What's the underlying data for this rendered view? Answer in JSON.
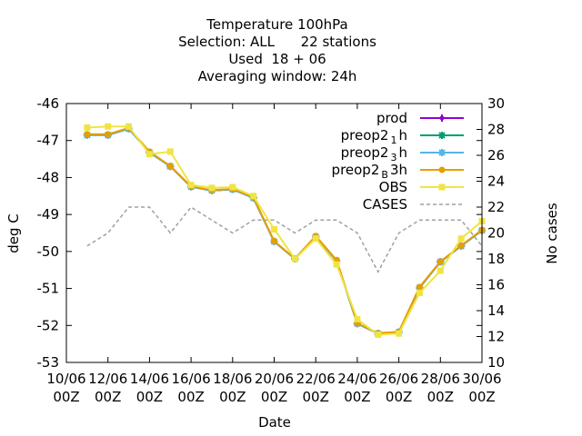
{
  "chart_data": {
    "type": "line",
    "title_lines": [
      "Temperature 100hPa",
      "Selection: ALL      22 stations",
      "Used  18 + 06",
      "Averaging window: 24h"
    ],
    "xlabel": "Date",
    "ylabel": "deg C",
    "y2label": "No cases",
    "ylim": [
      -53,
      -46
    ],
    "y2lim": [
      10,
      30
    ],
    "yticks": [
      "-53",
      "-52",
      "-51",
      "-50",
      "-49",
      "-48",
      "-47",
      "-46"
    ],
    "y2ticks": [
      "10",
      "12",
      "14",
      "16",
      "18",
      "20",
      "22",
      "24",
      "26",
      "28",
      "30"
    ],
    "xlim": [
      "2024-06-10T00",
      "2024-06-30T00"
    ],
    "xticks": [
      {
        "line1": "10/06",
        "line2": "00Z"
      },
      {
        "line1": "12/06",
        "line2": "00Z"
      },
      {
        "line1": "14/06",
        "line2": "00Z"
      },
      {
        "line1": "16/06",
        "line2": "00Z"
      },
      {
        "line1": "18/06",
        "line2": "00Z"
      },
      {
        "line1": "20/06",
        "line2": "00Z"
      },
      {
        "line1": "22/06",
        "line2": "00Z"
      },
      {
        "line1": "24/06",
        "line2": "00Z"
      },
      {
        "line1": "26/06",
        "line2": "00Z"
      },
      {
        "line1": "28/06",
        "line2": "00Z"
      },
      {
        "line1": "30/06",
        "line2": "00Z"
      }
    ],
    "x": [
      "2024-06-11T00",
      "2024-06-12T00",
      "2024-06-13T00",
      "2024-06-14T00",
      "2024-06-15T00",
      "2024-06-16T00",
      "2024-06-17T00",
      "2024-06-18T00",
      "2024-06-19T00",
      "2024-06-20T00",
      "2024-06-21T00",
      "2024-06-22T00",
      "2024-06-23T00",
      "2024-06-24T00",
      "2024-06-25T00",
      "2024-06-26T00",
      "2024-06-27T00",
      "2024-06-28T00",
      "2024-06-29T00",
      "2024-06-30T00"
    ],
    "legend": [
      {
        "key": "prod",
        "label": "prod",
        "sub": "",
        "after": "",
        "color": "#9400d3",
        "marker": "plus"
      },
      {
        "key": "p1",
        "label": "preop2",
        "sub": "1",
        "after": "h",
        "color": "#009e73",
        "marker": "star"
      },
      {
        "key": "p3",
        "label": "preop2",
        "sub": "3",
        "after": "h",
        "color": "#56b4e9",
        "marker": "star"
      },
      {
        "key": "pB",
        "label": "preop2",
        "sub": "B",
        "after": "3h",
        "color": "#e69f00",
        "marker": "circle"
      },
      {
        "key": "obs",
        "label": "OBS",
        "sub": "",
        "after": "",
        "color": "#f0e442",
        "marker": "square"
      },
      {
        "key": "cases",
        "label": "CASES",
        "sub": "",
        "after": "",
        "color": "#a0a0a0",
        "marker": "dash"
      }
    ],
    "series": [
      {
        "key": "prod",
        "axis": "y",
        "values": [
          -46.85,
          -46.85,
          -46.68,
          -47.32,
          -47.7,
          -48.25,
          -48.35,
          -48.32,
          -48.55,
          -49.73,
          -50.2,
          -49.6,
          -50.25,
          -51.95,
          -52.22,
          -52.18,
          -50.98,
          -50.28,
          -49.85,
          -49.43
        ]
      },
      {
        "key": "p1",
        "axis": "y",
        "values": [
          -46.85,
          -46.85,
          -46.68,
          -47.32,
          -47.7,
          -48.25,
          -48.35,
          -48.32,
          -48.55,
          -49.73,
          -50.2,
          -49.6,
          -50.25,
          -51.95,
          -52.22,
          -52.18,
          -50.98,
          -50.28,
          -49.85,
          -49.43
        ]
      },
      {
        "key": "p3",
        "axis": "y",
        "values": [
          -46.85,
          -46.85,
          -46.68,
          -47.32,
          -47.7,
          -48.25,
          -48.35,
          -48.32,
          -48.55,
          -49.73,
          -50.2,
          -49.6,
          -50.25,
          -51.95,
          -52.22,
          -52.18,
          -50.98,
          -50.28,
          -49.85,
          -49.43
        ]
      },
      {
        "key": "pB",
        "axis": "y",
        "values": [
          -46.83,
          -46.83,
          -46.66,
          -47.3,
          -47.69,
          -48.24,
          -48.34,
          -48.31,
          -48.53,
          -49.72,
          -50.19,
          -49.58,
          -50.23,
          -51.94,
          -52.21,
          -52.17,
          -50.96,
          -50.27,
          -49.84,
          -49.42
        ]
      },
      {
        "key": "obs",
        "axis": "y",
        "values": [
          -46.65,
          -46.62,
          -46.62,
          -47.37,
          -47.3,
          -48.2,
          -48.28,
          -48.26,
          -48.5,
          -49.4,
          -50.2,
          -49.65,
          -50.35,
          -51.83,
          -52.25,
          -52.22,
          -51.12,
          -50.52,
          -49.65,
          -49.18
        ]
      },
      {
        "key": "cases",
        "axis": "y2",
        "values": [
          19,
          20,
          22,
          22,
          20,
          22,
          21,
          20,
          21,
          21,
          20,
          21,
          21,
          20,
          17,
          20,
          21,
          21,
          21,
          19
        ]
      }
    ]
  }
}
